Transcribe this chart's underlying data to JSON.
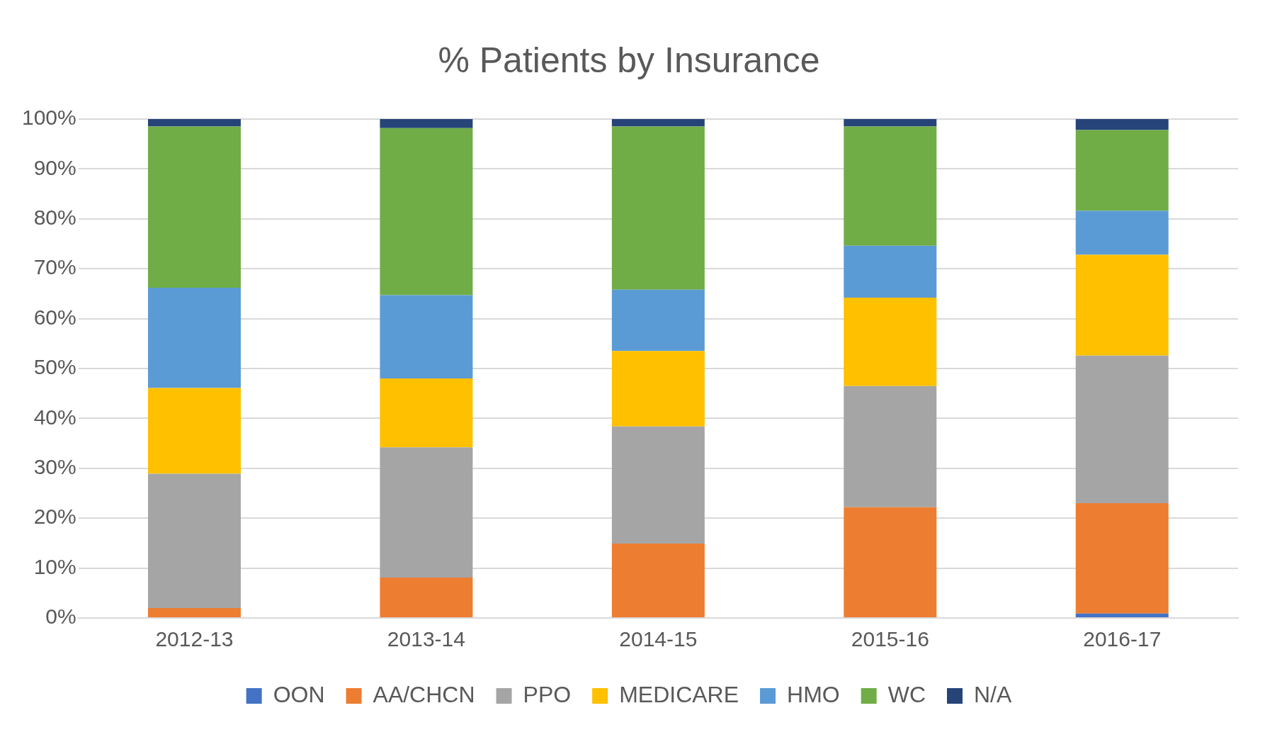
{
  "chart_data": {
    "type": "bar",
    "title": "% Patients by Insurance",
    "stacked": true,
    "grid": "y",
    "legend": "bottom",
    "categories": [
      "2012-13",
      "2013-14",
      "2014-15",
      "2015-16",
      "2016-17"
    ],
    "ylim": [
      0,
      100
    ],
    "yticks": [
      {
        "value": 0,
        "label": "0%"
      },
      {
        "value": 10,
        "label": "10%"
      },
      {
        "value": 20,
        "label": "20%"
      },
      {
        "value": 30,
        "label": "30%"
      },
      {
        "value": 40,
        "label": "40%"
      },
      {
        "value": 50,
        "label": "50%"
      },
      {
        "value": 60,
        "label": "60%"
      },
      {
        "value": 70,
        "label": "70%"
      },
      {
        "value": 80,
        "label": "80%"
      },
      {
        "value": 90,
        "label": "90%"
      },
      {
        "value": 100,
        "label": "100%"
      }
    ],
    "series": [
      {
        "name": "OON",
        "color": "#4472c4",
        "values": [
          0,
          0,
          0,
          0,
          0.9
        ]
      },
      {
        "name": "AA/CHCN",
        "color": "#ed7d31",
        "values": [
          2.0,
          8.1,
          14.9,
          22.2,
          22.1
        ]
      },
      {
        "name": "PPO",
        "color": "#a5a5a5",
        "values": [
          26.9,
          26.1,
          23.5,
          24.3,
          29.6
        ]
      },
      {
        "name": "MEDICARE",
        "color": "#ffc000",
        "values": [
          17.2,
          13.8,
          15.1,
          17.7,
          20.2
        ]
      },
      {
        "name": "HMO",
        "color": "#5b9bd5",
        "values": [
          20.1,
          16.7,
          12.3,
          10.4,
          8.8
        ]
      },
      {
        "name": "WC",
        "color": "#70ad47",
        "values": [
          32.3,
          33.5,
          32.7,
          23.9,
          16.2
        ]
      },
      {
        "name": "N/A",
        "color": "#264478",
        "values": [
          1.5,
          1.8,
          1.5,
          1.5,
          2.2
        ]
      }
    ]
  }
}
